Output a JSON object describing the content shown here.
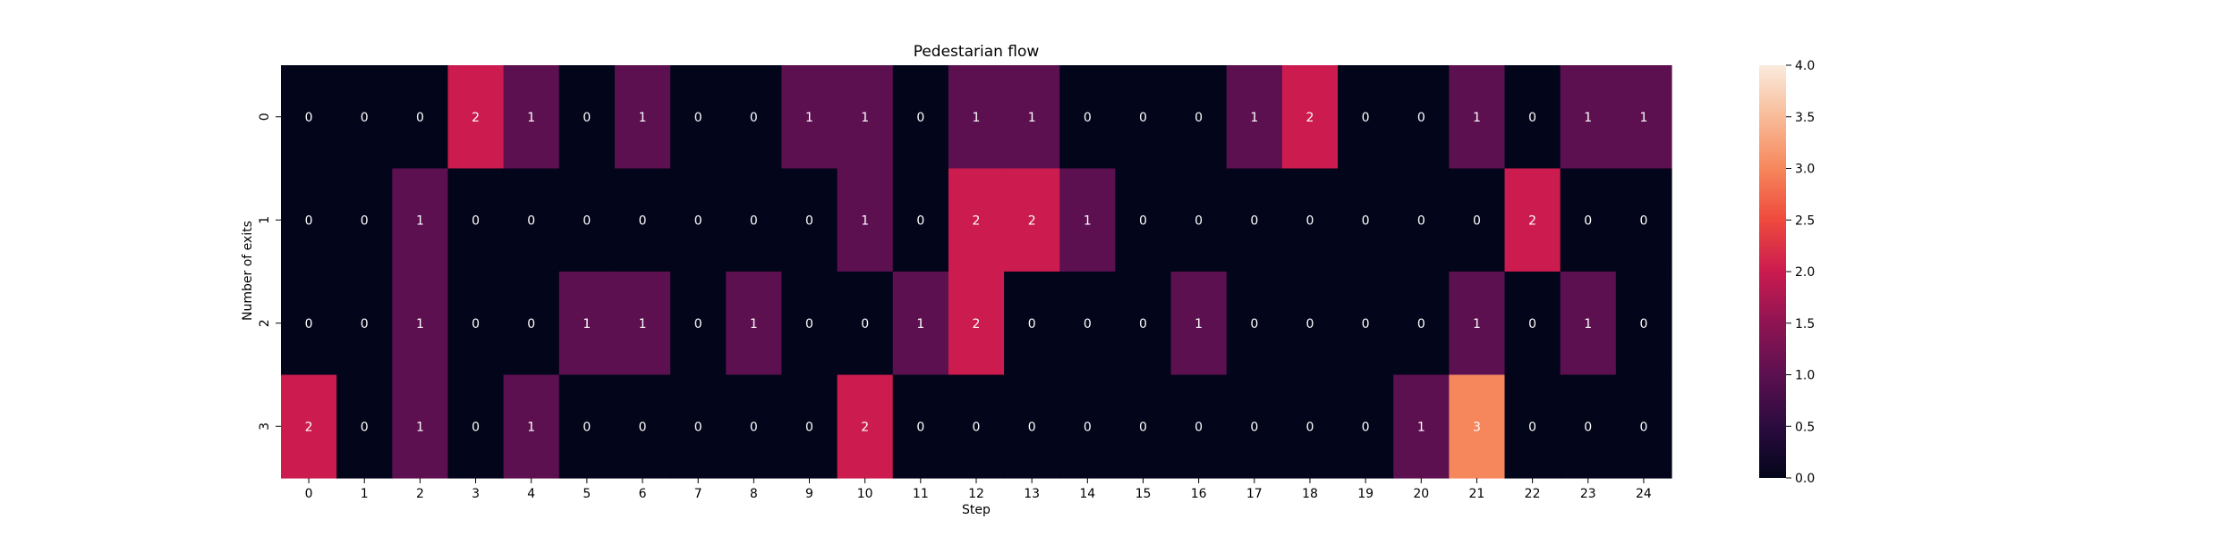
{
  "chart_data": {
    "type": "heatmap",
    "title": "Pedestarian flow",
    "xlabel": "Step",
    "ylabel": "Number of exits",
    "x_categories": [
      "0",
      "1",
      "2",
      "3",
      "4",
      "5",
      "6",
      "7",
      "8",
      "9",
      "10",
      "11",
      "12",
      "13",
      "14",
      "15",
      "16",
      "17",
      "18",
      "19",
      "20",
      "21",
      "22",
      "23",
      "24"
    ],
    "y_categories": [
      "0",
      "1",
      "2",
      "3"
    ],
    "values": [
      [
        0,
        0,
        0,
        2,
        1,
        0,
        1,
        0,
        0,
        1,
        1,
        0,
        1,
        1,
        0,
        0,
        0,
        1,
        2,
        0,
        0,
        1,
        0,
        1,
        1
      ],
      [
        0,
        0,
        1,
        0,
        0,
        0,
        0,
        0,
        0,
        0,
        1,
        0,
        2,
        2,
        1,
        0,
        0,
        0,
        0,
        0,
        0,
        0,
        2,
        0,
        0
      ],
      [
        0,
        0,
        1,
        0,
        0,
        1,
        1,
        0,
        1,
        0,
        0,
        1,
        2,
        0,
        0,
        0,
        1,
        0,
        0,
        0,
        0,
        1,
        0,
        1,
        0
      ],
      [
        2,
        0,
        1,
        0,
        1,
        0,
        0,
        0,
        0,
        0,
        2,
        0,
        0,
        0,
        0,
        0,
        0,
        0,
        0,
        0,
        1,
        3,
        0,
        0,
        0
      ]
    ],
    "colorbar": {
      "vmin": 0,
      "vmax": 4,
      "ticks": [
        "0.0",
        "0.5",
        "1.0",
        "1.5",
        "2.0",
        "2.5",
        "3.0",
        "3.5",
        "4.0"
      ],
      "colormap": "rocket"
    }
  }
}
